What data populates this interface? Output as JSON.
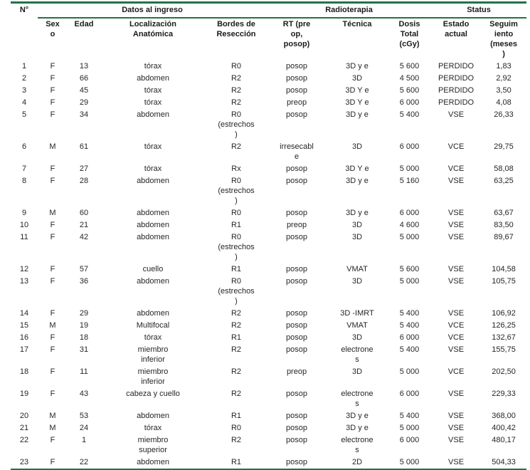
{
  "table": {
    "corner_label": "N°",
    "group_headers": [
      {
        "label": "Datos al ingreso"
      },
      {
        "label": "Radioterapia"
      },
      {
        "label": "Status"
      }
    ],
    "column_headers": [
      "Sex\no",
      "Edad",
      "Localización\nAnatómica",
      "Bordes de\nResección",
      "RT (pre\nop,\nposop)",
      "Técnica",
      "Dosis\nTotal\n(cGy)",
      "Estado\nactual",
      "Seguim\niento\n(meses\n)"
    ],
    "rows": [
      [
        "1",
        "F",
        "13",
        "tórax",
        "R0",
        "posop",
        "3D y e",
        "5 600",
        "PERDIDO",
        "1,83"
      ],
      [
        "2",
        "F",
        "66",
        "abdomen",
        "R2",
        "posop",
        "3D",
        "4 500",
        "PERDIDO",
        "2,92"
      ],
      [
        "3",
        "F",
        "45",
        "tórax",
        "R2",
        "posop",
        "3D Y e",
        "5 600",
        "PERDIDO",
        "3,50"
      ],
      [
        "4",
        "F",
        "29",
        "tórax",
        "R2",
        "preop",
        "3D Y e",
        "6 000",
        "PERDIDO",
        "4,08"
      ],
      [
        "5",
        "F",
        "34",
        "abdomen",
        "R0\n(estrechos\n)",
        "posop",
        "3D y e",
        "5 400",
        "VSE",
        "26,33"
      ],
      [
        "6",
        "M",
        "61",
        "tórax",
        "R2",
        "irresecabl\ne",
        "3D",
        "6 000",
        "VCE",
        "29,75"
      ],
      [
        "7",
        "F",
        "27",
        "tórax",
        "Rx",
        "posop",
        "3D Y e",
        "5 000",
        "VCE",
        "58,08"
      ],
      [
        "8",
        "F",
        "28",
        "abdomen",
        "R0\n(estrechos\n)",
        "posop",
        "3D y e",
        "5 160",
        "VSE",
        "63,25"
      ],
      [
        "9",
        "M",
        "60",
        "abdomen",
        "R0",
        "posop",
        "3D y e",
        "6 000",
        "VSE",
        "63,67"
      ],
      [
        "10",
        "F",
        "21",
        "abdomen",
        "R1",
        "preop",
        "3D",
        "4 600",
        "VSE",
        "83,50"
      ],
      [
        "11",
        "F",
        "42",
        "abdomen",
        "R0\n(estrechos\n)",
        "posop",
        "3D",
        "5 000",
        "VSE",
        "89,67"
      ],
      [
        "12",
        "F",
        "57",
        "cuello",
        "R1",
        "posop",
        "VMAT",
        "5 600",
        "VSE",
        "104,58"
      ],
      [
        "13",
        "F",
        "36",
        "abdomen",
        "R0\n(estrechos\n)",
        "posop",
        "3D",
        "5 000",
        "VSE",
        "105,75"
      ],
      [
        "14",
        "F",
        "29",
        "abdomen",
        "R2",
        "posop",
        "3D -IMRT",
        "5 400",
        "VSE",
        "106,92"
      ],
      [
        "15",
        "M",
        "19",
        "Multifocal",
        "R2",
        "posop",
        "VMAT",
        "5 400",
        "VCE",
        "126,25"
      ],
      [
        "16",
        "F",
        "18",
        "tórax",
        "R1",
        "posop",
        "3D",
        "6 000",
        "VCE",
        "132,67"
      ],
      [
        "17",
        "F",
        "31",
        "miembro\ninferior",
        "R2",
        "posop",
        "electrone\ns",
        "5 400",
        "VSE",
        "155,75"
      ],
      [
        "18",
        "F",
        "11",
        "miembro\ninferior",
        "R2",
        "preop",
        "3D",
        "5 000",
        "VCE",
        "202,50"
      ],
      [
        "19",
        "F",
        "43",
        "cabeza y cuello",
        "R2",
        "posop",
        "electrone\ns",
        "6 000",
        "VSE",
        "229,33"
      ],
      [
        "20",
        "M",
        "53",
        "abdomen",
        "R1",
        "posop",
        "3D y e",
        "5 400",
        "VSE",
        "368,00"
      ],
      [
        "21",
        "M",
        "24",
        "tórax",
        "R0",
        "posop",
        "3D y e",
        "5 000",
        "VSE",
        "400,42"
      ],
      [
        "22",
        "F",
        "1",
        "miembro\nsuperior",
        "R2",
        "posop",
        "electrone\ns",
        "6 000",
        "VSE",
        "480,17"
      ],
      [
        "23",
        "F",
        "22",
        "abdomen",
        "R1",
        "posop",
        "2D",
        "5 000",
        "VSE",
        "504,33"
      ]
    ]
  },
  "colors": {
    "accent_green": "#217346",
    "body_text": "#262626"
  }
}
